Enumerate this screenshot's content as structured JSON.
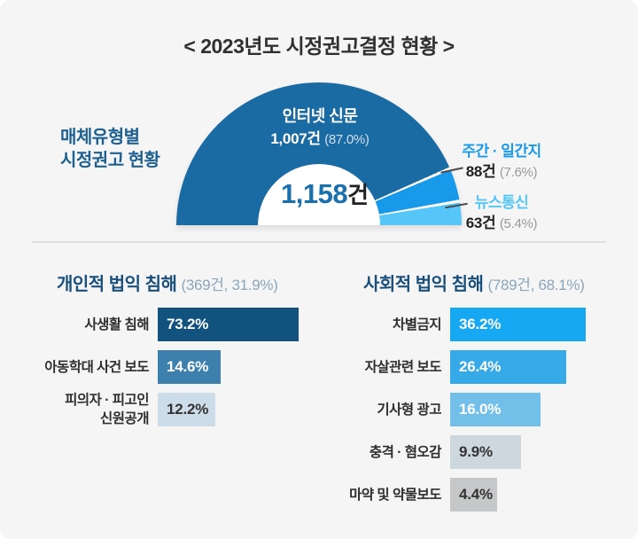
{
  "header": {
    "title": "< 2023년도 시정권고결정 현황 >"
  },
  "media_panel": {
    "side_label_line1": "매체유형별",
    "side_label_line2": "시정권고 현황",
    "total_value": "1,158",
    "total_unit": "건"
  },
  "colors": {
    "background": "#f5f5f5",
    "title_text": "#303030",
    "side_label": "#1e6191",
    "section_title": "#1a4f7b",
    "section_subtitle": "#8ba6bb",
    "total_number": "#1a6fad",
    "divider": "#dfdfdf",
    "callout_line": "#4a4a4a",
    "donut_hole": "#ffffff"
  },
  "chart_data": [
    {
      "type": "pie",
      "variant": "semicircle-donut",
      "title": "매체유형별 시정권고 현황",
      "total": 1158,
      "total_label": "1,158건",
      "start_angle_deg": 180,
      "sweep_deg": 180,
      "legend_position": "callout-right",
      "segments": [
        {
          "label": "인터넷 신문",
          "value": 1007,
          "count_label": "1,007건",
          "pct": 87.0,
          "pct_label": "(87.0%)",
          "color": "#1a6aa3"
        },
        {
          "label": "주간 · 일간지",
          "value": 88,
          "count_label": "88건",
          "pct": 7.6,
          "pct_label": "(7.6%)",
          "color": "#1999e9"
        },
        {
          "label": "뉴스통신",
          "value": 63,
          "count_label": "63건",
          "pct": 5.4,
          "pct_label": "(5.4%)",
          "color": "#55c6f7"
        }
      ]
    },
    {
      "type": "bar",
      "orientation": "horizontal",
      "title": "개인적 법익 침해",
      "subtitle": "(369건, 31.9%)",
      "total_count": 369,
      "total_pct": 31.9,
      "categories": [
        "사생활 침해",
        "아동학대 사건 보도",
        "피의자 · 피고인 신원공개"
      ],
      "values": [
        73.2,
        14.6,
        12.2
      ],
      "value_labels": [
        "73.2%",
        "14.6%",
        "12.2%"
      ],
      "colors": [
        "#12527e",
        "#3d80ad",
        "#ccdce8"
      ],
      "value_text_colors": [
        "#ffffff",
        "#ffffff",
        "#333333"
      ],
      "xlim": [
        0,
        100
      ],
      "grid": false
    },
    {
      "type": "bar",
      "orientation": "horizontal",
      "title": "사회적 법익 침해",
      "subtitle": "(789건, 68.1%)",
      "total_count": 789,
      "total_pct": 68.1,
      "categories": [
        "차별금지",
        "자살관련 보도",
        "기사형 광고",
        "충격 · 혐오감",
        "마약 및 약물보도"
      ],
      "values": [
        36.2,
        26.4,
        16.0,
        9.9,
        4.4
      ],
      "value_labels": [
        "36.2%",
        "26.4%",
        "16.0%",
        "9.9%",
        "4.4%"
      ],
      "colors": [
        "#16a8f3",
        "#36a9e9",
        "#72c0ea",
        "#ccd8de",
        "#c6c7c8"
      ],
      "value_text_colors": [
        "#ffffff",
        "#ffffff",
        "#ffffff",
        "#333333",
        "#333333"
      ],
      "xlim": [
        0,
        100
      ],
      "grid": false
    }
  ]
}
